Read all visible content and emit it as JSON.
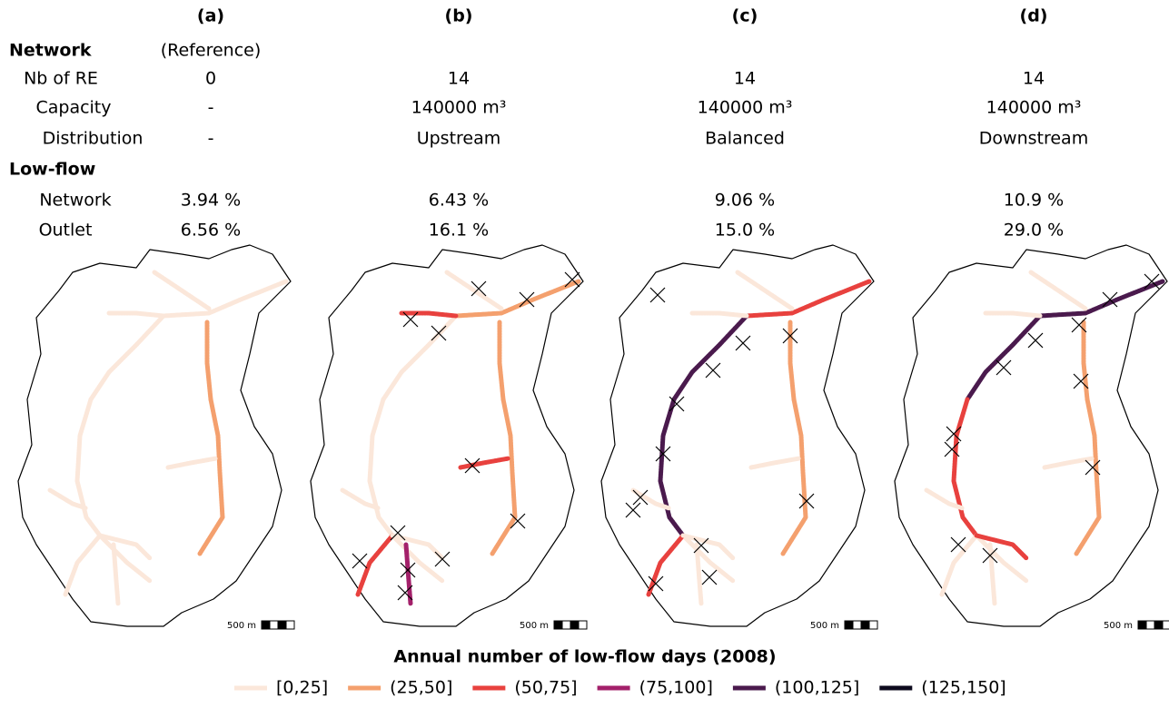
{
  "panels": [
    "(a)",
    "(b)",
    "(c)",
    "(d)"
  ],
  "table": {
    "network_heading": "Network",
    "reference": "(Reference)",
    "network_rows": [
      {
        "label": "Nb of RE",
        "values": [
          "0",
          "14",
          "14",
          "14"
        ]
      },
      {
        "label": "Capacity",
        "values": [
          "-",
          "140000 m³",
          "140000 m³",
          "140000 m³"
        ]
      },
      {
        "label": "Distribution",
        "values": [
          "-",
          "Upstream",
          "Balanced",
          "Downstream"
        ]
      }
    ],
    "lowflow_heading": "Low-flow",
    "lowflow_rows": [
      {
        "label": "Network",
        "values": [
          "3.94 %",
          "6.43 %",
          "9.06 %",
          "10.9 %"
        ]
      },
      {
        "label": "Outlet",
        "values": [
          "6.56 %",
          "16.1 %",
          "15.0 %",
          "29.0 %"
        ]
      }
    ]
  },
  "scale_bar": "500 m",
  "legend": {
    "title": "Annual number of low-flow days (2008)",
    "items": [
      {
        "label": "[0,25]",
        "color": "#fbe7da"
      },
      {
        "label": "(25,50]",
        "color": "#f4a06e"
      },
      {
        "label": "(50,75]",
        "color": "#e8413e"
      },
      {
        "label": "(75,100]",
        "color": "#a3206a"
      },
      {
        "label": "(100,125]",
        "color": "#4a1a4d"
      },
      {
        "label": "(125,150]",
        "color": "#0d0a1e"
      }
    ]
  }
}
